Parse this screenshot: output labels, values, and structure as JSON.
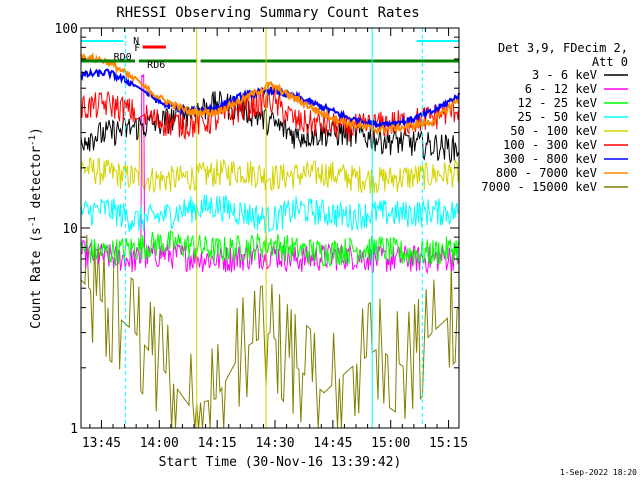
{
  "chart_data": {
    "type": "line",
    "title": "RHESSI Observing Summary Count Rates",
    "xlabel": "Start Time (30-Nov-16 13:39:42)",
    "ylabel": "Count Rate (s⁻¹ detector⁻¹)",
    "yscale": "log",
    "ylim": [
      1,
      100
    ],
    "xlim_minutes": [
      0,
      98
    ],
    "x_ticks": [
      "13:45",
      "14:00",
      "14:15",
      "14:30",
      "14:45",
      "15:00",
      "15:15"
    ],
    "y_ticks": [
      "1",
      "10",
      "100"
    ],
    "legend_header": [
      "Det 3,9, FDecim 2,",
      "Att 0"
    ],
    "legend_position": "right",
    "timestamp": "1-Sep-2022 18:20",
    "flags": [
      {
        "label": "N"
      },
      {
        "label": "F"
      },
      {
        "label": "RD0"
      },
      {
        "label": "RD6"
      }
    ],
    "series": [
      {
        "name": "3 - 6 keV",
        "color": "#000000",
        "level": [
          28,
          30,
          32,
          34,
          38,
          42,
          40,
          34,
          29,
          30,
          30,
          28,
          27,
          26,
          25
        ]
      },
      {
        "name": "6 - 12 keV",
        "color": "#ff00ff",
        "level": [
          7.5,
          7.2,
          7.0,
          7.5,
          7.2,
          7.0,
          7.2,
          7.5,
          7.0,
          7.2,
          7.3,
          7.0,
          7.1,
          7.0,
          7.3
        ]
      },
      {
        "name": "12 - 25 keV",
        "color": "#00ff00",
        "level": [
          7.8,
          7.6,
          8.0,
          8.5,
          8.2,
          7.8,
          8.0,
          8.4,
          7.8,
          7.6,
          7.8,
          8.0,
          7.5,
          7.6,
          8.0
        ]
      },
      {
        "name": "25 - 50 keV",
        "color": "#00ffff",
        "level": [
          12,
          12.5,
          11,
          11.5,
          12.5,
          13,
          12,
          11,
          12.5,
          12,
          11.5,
          12,
          11.8,
          12.2,
          12
        ]
      },
      {
        "name": "50 - 100 keV",
        "color": "#d4d400",
        "level": [
          20,
          19,
          18,
          17.5,
          18,
          19,
          19.5,
          18,
          18.5,
          19,
          18,
          17.5,
          18,
          18.5,
          19
        ]
      },
      {
        "name": "100 - 300 keV",
        "color": "#ff0000",
        "level": [
          40,
          42,
          38,
          34,
          33,
          35,
          40,
          44,
          34,
          33,
          32,
          33,
          34,
          36,
          40
        ]
      },
      {
        "name": "300 - 800 keV",
        "color": "#0000ff",
        "level": [
          58,
          60,
          52,
          42,
          38,
          40,
          46,
          49,
          45,
          40,
          35,
          33,
          34,
          38,
          46
        ]
      },
      {
        "name": "800 - 7000 keV",
        "color": "#ff8800",
        "level": [
          72,
          68,
          55,
          44,
          38,
          38,
          44,
          52,
          44,
          37,
          33,
          31,
          32,
          34,
          44
        ]
      },
      {
        "name": "7000 - 15000 keV",
        "color": "#808000",
        "level": [
          5.5,
          4.0,
          3.0,
          2.0,
          1.3,
          1.4,
          2.5,
          3.0,
          2.0,
          1.5,
          2.0,
          2.5,
          2.0,
          3.0,
          4.0
        ]
      }
    ]
  }
}
